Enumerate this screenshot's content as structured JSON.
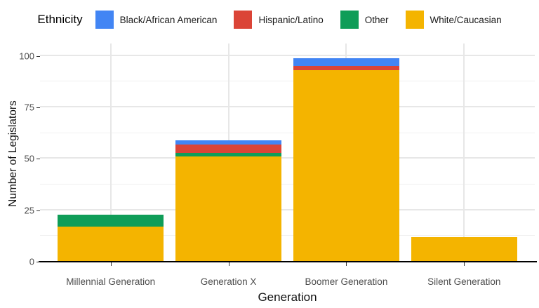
{
  "chart_data": {
    "type": "bar",
    "stacked": true,
    "legend_title": "Ethnicity",
    "xlabel": "Generation",
    "ylabel": "Number of Legislators",
    "categories": [
      "Millennial Generation",
      "Generation X",
      "Boomer Generation",
      "Silent Generation"
    ],
    "series": [
      {
        "name": "Black/African American",
        "color": "#4285F4",
        "values": [
          0,
          2,
          4,
          0
        ]
      },
      {
        "name": "Hispanic/Latino",
        "color": "#DB4437",
        "values": [
          0,
          4,
          2,
          0
        ]
      },
      {
        "name": "Other",
        "color": "#0F9D58",
        "values": [
          6,
          2,
          0,
          0
        ]
      },
      {
        "name": "White/Caucasian",
        "color": "#F4B400",
        "values": [
          17,
          51,
          93,
          12
        ]
      }
    ],
    "stack_order_bottom_to_top": [
      "White/Caucasian",
      "Other",
      "Hispanic/Latino",
      "Black/African American"
    ],
    "totals": [
      23,
      59,
      99,
      12
    ],
    "ylim": [
      0,
      100
    ],
    "yticks": [
      0,
      25,
      50,
      75,
      100
    ],
    "minor_gridlines": [
      12.5,
      37.5,
      62.5,
      87.5
    ],
    "legend_position": "top",
    "grid": true,
    "grid_color": "#E7E7E7",
    "background_color": "#FFFFFF",
    "axis_line_color": "#000000",
    "tick_text_color": "#4D4D4D"
  }
}
